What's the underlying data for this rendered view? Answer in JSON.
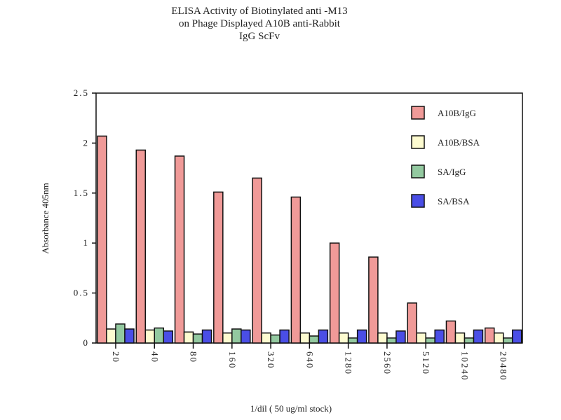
{
  "chart_data": {
    "type": "bar",
    "title": [
      "ELISA Activity of Biotinylated anti -M13",
      "on Phage Displayed A10B anti-Rabbit",
      "IgG ScFv"
    ],
    "xlabel": "1/dil ( 50 ug/ml stock)",
    "ylabel": "Absorbance 405nm",
    "ylim": [
      0,
      2.5
    ],
    "yticks": [
      "0",
      "0.5",
      "1",
      "1.5",
      "2",
      "2.5"
    ],
    "legend_position": "top-right",
    "categories": [
      "20",
      "40",
      "80",
      "160",
      "320",
      "640",
      "1280",
      "2560",
      "5120",
      "10240",
      "20480"
    ],
    "series": [
      {
        "name": "A10B/IgG",
        "color": "#f09a98",
        "values": [
          2.07,
          1.93,
          1.87,
          1.51,
          1.65,
          1.46,
          1.0,
          0.86,
          0.4,
          0.22,
          0.15
        ]
      },
      {
        "name": "A10B/BSA",
        "color": "#fdfbd0",
        "values": [
          0.14,
          0.13,
          0.11,
          0.1,
          0.1,
          0.1,
          0.1,
          0.1,
          0.1,
          0.1,
          0.1
        ]
      },
      {
        "name": "SA/IgG",
        "color": "#93c9a0",
        "values": [
          0.19,
          0.15,
          0.09,
          0.14,
          0.08,
          0.07,
          0.05,
          0.05,
          0.05,
          0.05,
          0.05
        ]
      },
      {
        "name": "SA/BSA",
        "color": "#4a4ee6",
        "values": [
          0.14,
          0.12,
          0.13,
          0.13,
          0.13,
          0.13,
          0.13,
          0.12,
          0.13,
          0.13,
          0.13
        ]
      }
    ]
  }
}
